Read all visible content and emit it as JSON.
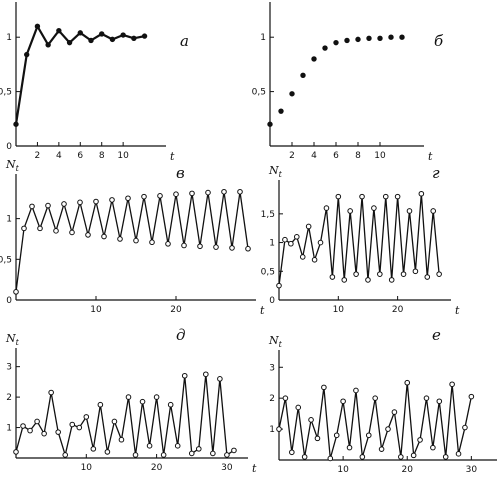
{
  "chart_data": [
    {
      "type": "line",
      "panel_label": "а",
      "ylabel": "N",
      "ylabel_sub": "t",
      "xlabel": "t",
      "xlim": [
        0,
        14
      ],
      "ylim": [
        0,
        1.25
      ],
      "x_ticks": [
        2,
        4,
        6,
        8,
        10
      ],
      "x_tick_labels": [
        "2",
        "4",
        "6",
        "8",
        "10"
      ],
      "y_ticks": [
        0,
        0.5,
        1
      ],
      "y_tick_labels": [
        "0",
        "0,5",
        "1"
      ],
      "marker": "filled",
      "connected": true,
      "thick": true,
      "x": [
        0,
        1,
        2,
        3,
        4,
        5,
        6,
        7,
        8,
        9,
        10,
        11,
        12
      ],
      "y": [
        0.2,
        0.84,
        1.1,
        0.93,
        1.06,
        0.95,
        1.04,
        0.97,
        1.03,
        0.98,
        1.02,
        0.99,
        1.01
      ]
    },
    {
      "type": "scatter",
      "panel_label": "б",
      "ylabel": "N",
      "ylabel_sub": "t",
      "xlabel": "t",
      "xlim": [
        0,
        14
      ],
      "ylim": [
        0,
        1.25
      ],
      "x_ticks": [
        2,
        4,
        6,
        8,
        10
      ],
      "x_tick_labels": [
        "2",
        "4",
        "6",
        "8",
        "10"
      ],
      "y_ticks": [
        0.5,
        1
      ],
      "y_tick_labels": [
        "0,5",
        "1"
      ],
      "marker": "filled",
      "connected": false,
      "thick": false,
      "x": [
        0,
        1,
        2,
        3,
        4,
        5,
        6,
        7,
        8,
        9,
        10,
        11,
        12
      ],
      "y": [
        0.2,
        0.32,
        0.48,
        0.65,
        0.8,
        0.9,
        0.95,
        0.97,
        0.98,
        0.99,
        0.99,
        1.0,
        1.0
      ]
    },
    {
      "type": "line",
      "panel_label": "в",
      "ylabel": "N",
      "ylabel_sub": "t",
      "xlabel": "t",
      "xlim": [
        0,
        30
      ],
      "ylim": [
        0,
        1.45
      ],
      "x_ticks": [
        10,
        20
      ],
      "x_tick_labels": [
        "10",
        "20"
      ],
      "y_ticks": [
        0,
        0.5,
        1
      ],
      "y_tick_labels": [
        "0",
        "0,5",
        "1"
      ],
      "marker": "open",
      "connected": true,
      "thick": false,
      "x": [
        0,
        1,
        2,
        3,
        4,
        5,
        6,
        7,
        8,
        9,
        10,
        11,
        12,
        13,
        14,
        15,
        16,
        17,
        18,
        19,
        20,
        21,
        22,
        23,
        24,
        25,
        26,
        27,
        28,
        29
      ],
      "y": [
        0.1,
        0.88,
        1.15,
        0.88,
        1.16,
        0.85,
        1.18,
        0.83,
        1.2,
        0.8,
        1.21,
        0.78,
        1.23,
        0.75,
        1.25,
        0.73,
        1.27,
        0.71,
        1.28,
        0.69,
        1.3,
        0.67,
        1.31,
        0.66,
        1.32,
        0.65,
        1.33,
        0.64,
        1.33,
        0.63
      ]
    },
    {
      "type": "line",
      "panel_label": "г",
      "ylabel": "N",
      "ylabel_sub": "t",
      "xlabel": "t",
      "xlim": [
        0,
        29
      ],
      "ylim": [
        0,
        1.95
      ],
      "x_ticks": [
        10,
        20
      ],
      "x_tick_labels": [
        "10",
        "20"
      ],
      "y_ticks": [
        0,
        0.5,
        1,
        1.5
      ],
      "y_tick_labels": [
        "0",
        "0,5",
        "1",
        "1,5"
      ],
      "marker": "open",
      "connected": true,
      "thick": false,
      "x": [
        0,
        1,
        2,
        3,
        4,
        5,
        6,
        7,
        8,
        9,
        10,
        11,
        12,
        13,
        14,
        15,
        16,
        17,
        18,
        19,
        20,
        21,
        22,
        23,
        24,
        25,
        26,
        27
      ],
      "y": [
        0.25,
        1.05,
        0.98,
        1.1,
        0.75,
        1.28,
        0.7,
        1.0,
        1.6,
        0.4,
        1.8,
        0.35,
        1.55,
        0.45,
        1.8,
        0.35,
        1.6,
        0.45,
        1.8,
        0.35,
        1.8,
        0.45,
        1.55,
        0.5,
        1.85,
        0.4,
        1.55,
        0.45
      ]
    },
    {
      "type": "line",
      "panel_label": "д",
      "ylabel": "N",
      "ylabel_sub": "t",
      "xlabel": "t",
      "xlim": [
        0,
        33
      ],
      "ylim": [
        0,
        3.35
      ],
      "x_ticks": [
        10,
        20,
        30
      ],
      "x_tick_labels": [
        "10",
        "20",
        "30"
      ],
      "y_ticks": [
        1,
        2,
        3
      ],
      "y_tick_labels": [
        "1",
        "2",
        "3"
      ],
      "marker": "open",
      "connected": true,
      "thick": false,
      "x": [
        0,
        1,
        2,
        3,
        4,
        5,
        6,
        7,
        8,
        9,
        10,
        11,
        12,
        13,
        14,
        15,
        16,
        17,
        18,
        19,
        20,
        21,
        22,
        23,
        24,
        25,
        26,
        27,
        28,
        29,
        30,
        31
      ],
      "y": [
        0.2,
        1.05,
        0.9,
        1.2,
        0.8,
        2.15,
        0.85,
        0.1,
        1.1,
        1.0,
        1.35,
        0.3,
        1.75,
        0.2,
        1.2,
        0.6,
        2.0,
        0.1,
        1.85,
        0.4,
        2.0,
        0.1,
        1.75,
        0.4,
        2.7,
        0.15,
        0.3,
        2.75,
        0.15,
        2.6,
        0.1,
        0.25
      ]
    },
    {
      "type": "line",
      "panel_label": "е",
      "ylabel": "N",
      "ylabel_sub": "t",
      "xlabel": "t",
      "xlim": [
        0,
        34
      ],
      "ylim": [
        0,
        3.3
      ],
      "x_ticks": [
        10,
        20,
        30
      ],
      "x_tick_labels": [
        "10",
        "20",
        "30"
      ],
      "y_ticks": [
        1,
        2,
        3
      ],
      "y_tick_labels": [
        "1",
        "2",
        "3"
      ],
      "marker": "open",
      "connected": true,
      "thick": false,
      "x": [
        0,
        1,
        2,
        3,
        4,
        5,
        6,
        7,
        8,
        9,
        10,
        11,
        12,
        13,
        14,
        15,
        16,
        17,
        18,
        19,
        20,
        21,
        22,
        23,
        24,
        25,
        26,
        27,
        28,
        29,
        30
      ],
      "y": [
        1.0,
        2.0,
        0.25,
        1.7,
        0.1,
        1.3,
        0.7,
        2.35,
        0.05,
        0.8,
        1.9,
        0.4,
        2.25,
        0.1,
        0.8,
        2.0,
        0.35,
        1.0,
        1.55,
        0.1,
        2.5,
        0.15,
        0.65,
        2.0,
        0.4,
        1.9,
        0.1,
        2.45,
        0.2,
        1.05,
        2.05
      ]
    }
  ]
}
